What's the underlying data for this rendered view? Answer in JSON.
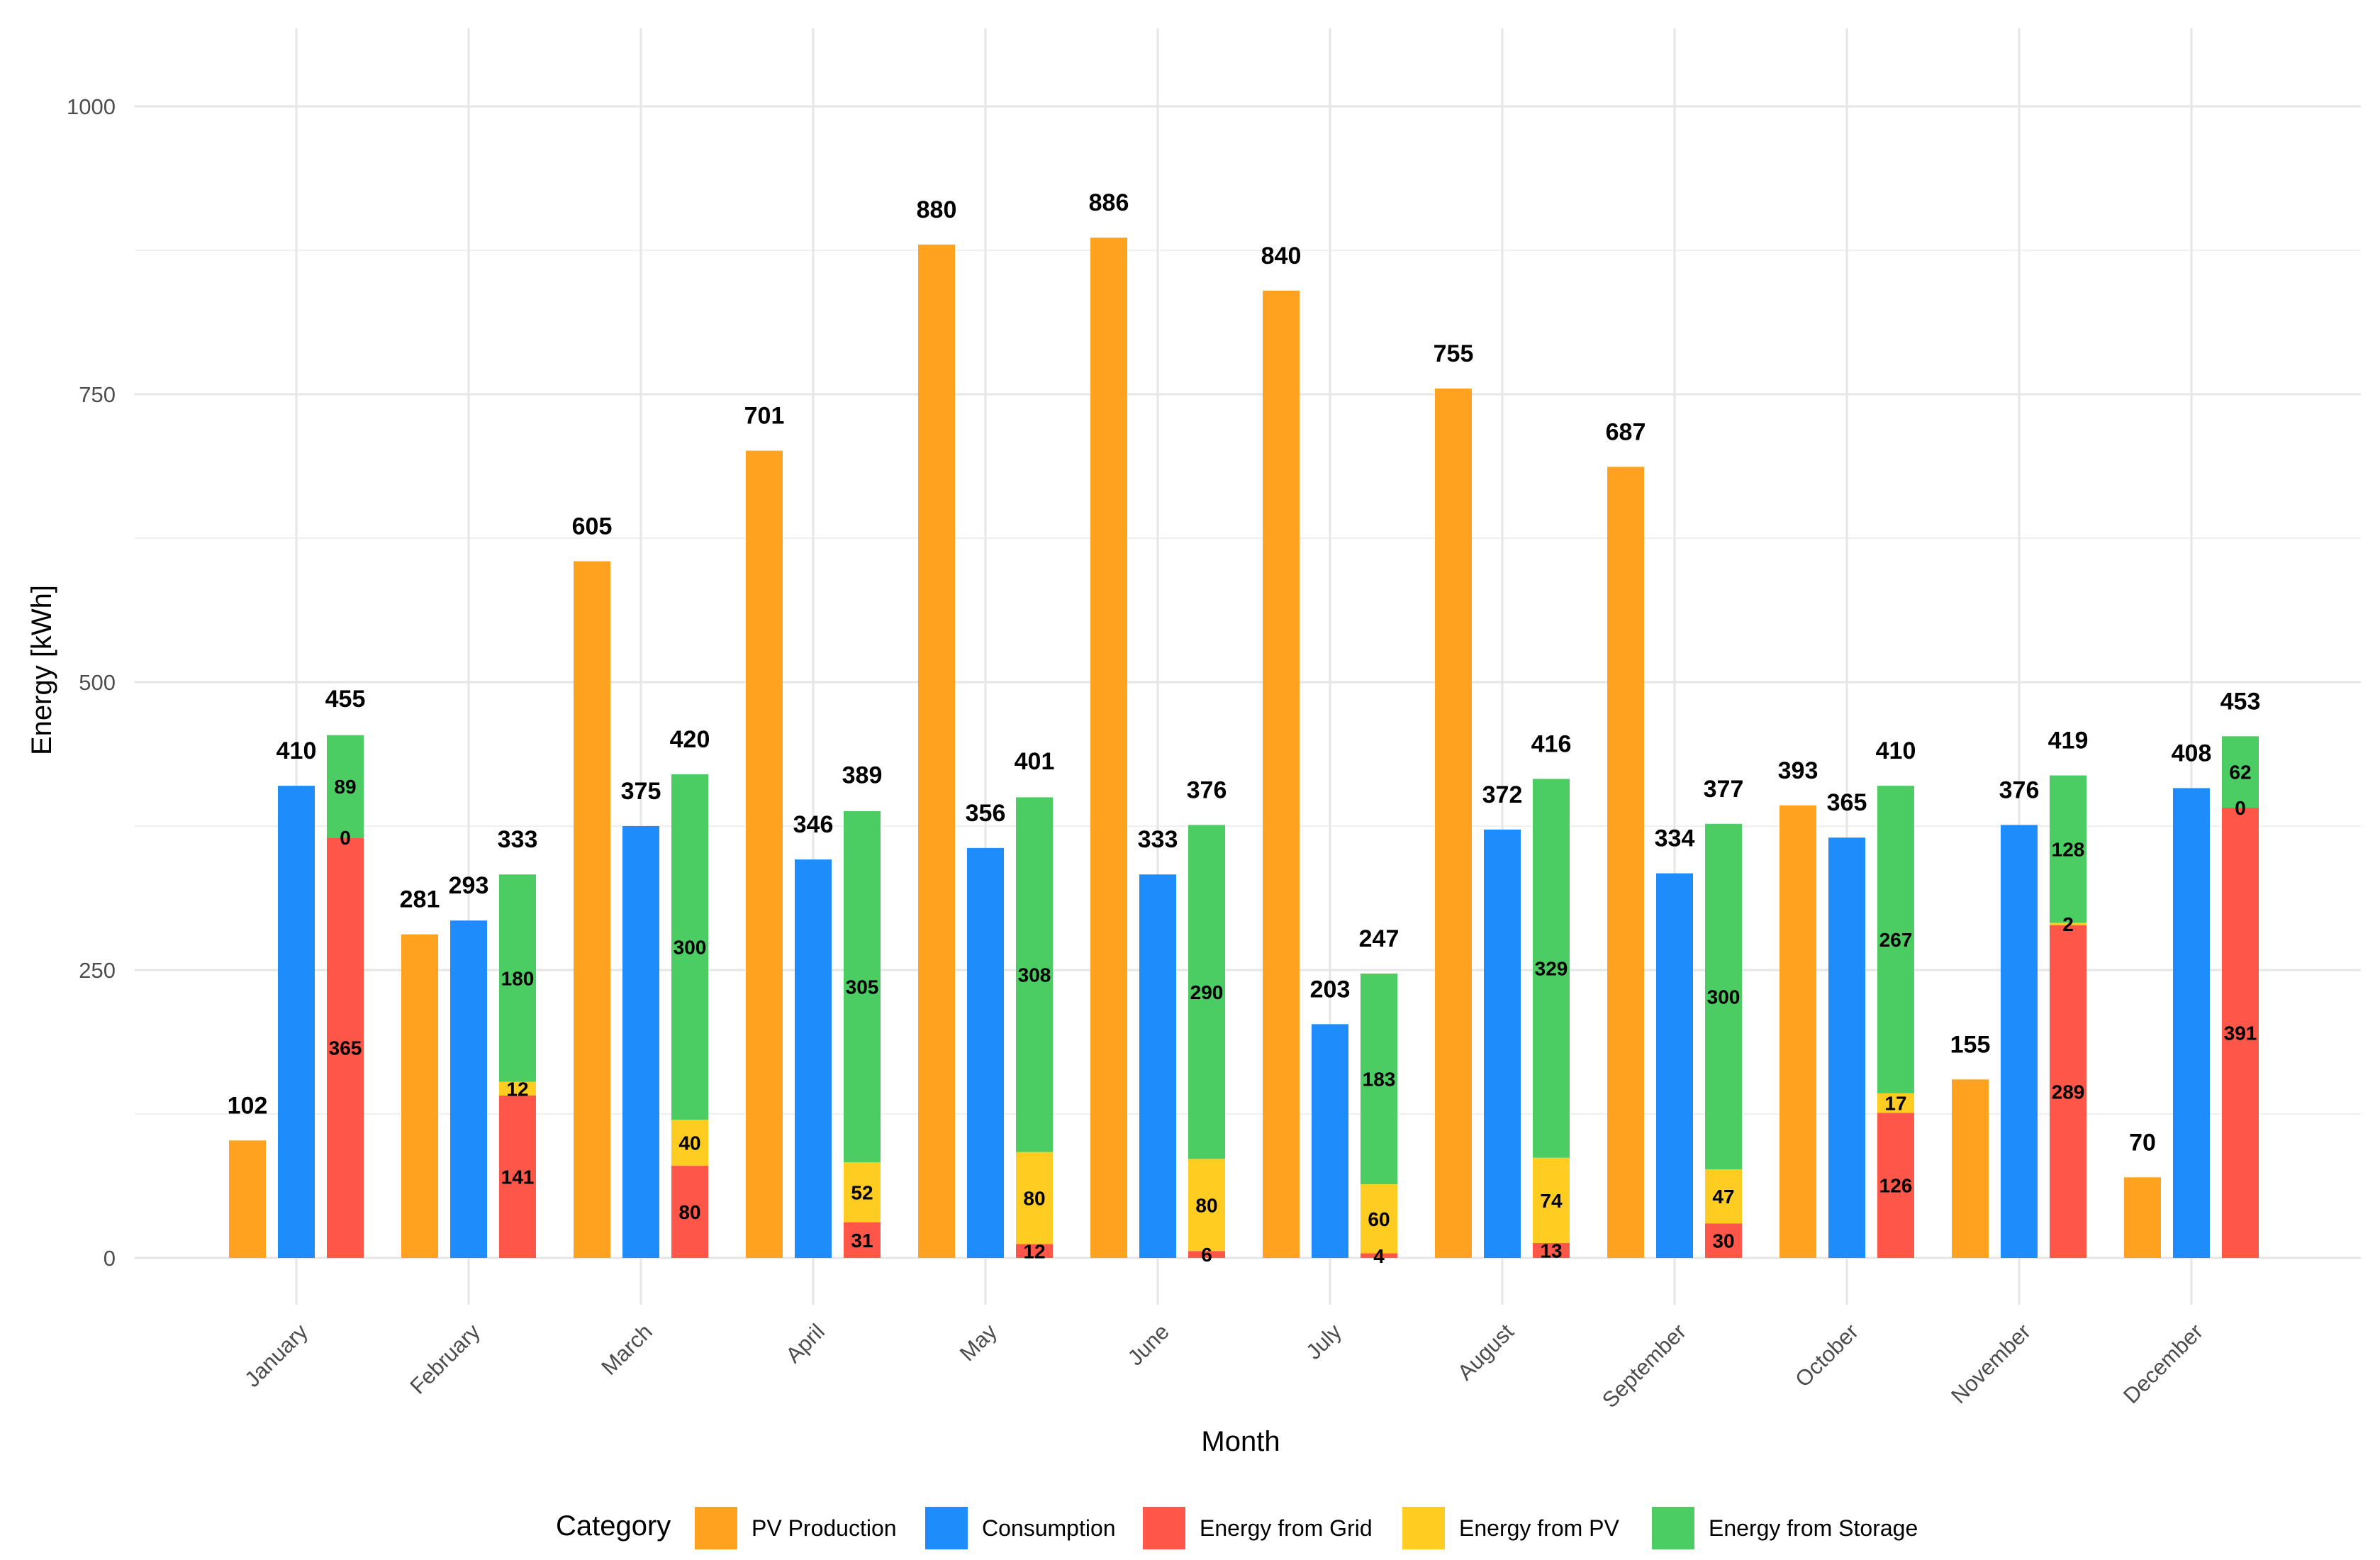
{
  "chart_data": {
    "type": "bar",
    "title": "",
    "xlabel": "Month",
    "ylabel": "Energy [kWh]",
    "ylim": [
      0,
      1000
    ],
    "y_ticks": [
      0,
      250,
      500,
      750,
      1000
    ],
    "grid": true,
    "categories": [
      "January",
      "February",
      "March",
      "April",
      "May",
      "June",
      "July",
      "August",
      "September",
      "October",
      "November",
      "December"
    ],
    "series": [
      {
        "name": "PV Production",
        "group": "pv",
        "color": "#FFA21F",
        "values": [
          102,
          281,
          605,
          701,
          880,
          886,
          840,
          755,
          687,
          393,
          155,
          70
        ]
      },
      {
        "name": "Consumption",
        "group": "consumption",
        "color": "#1E8CFA",
        "values": [
          410,
          293,
          375,
          346,
          356,
          333,
          203,
          372,
          334,
          365,
          376,
          408
        ]
      },
      {
        "name": "Energy from Grid",
        "group": "stack",
        "color": "#FF564A",
        "values": [
          365,
          141,
          80,
          31,
          12,
          6,
          4,
          13,
          30,
          126,
          289,
          391
        ]
      },
      {
        "name": "Energy from PV",
        "group": "stack",
        "color": "#FFCC22",
        "values": [
          0,
          12,
          40,
          52,
          80,
          80,
          60,
          74,
          47,
          17,
          2,
          0
        ]
      },
      {
        "name": "Energy from Storage",
        "group": "stack",
        "color": "#4CCD63",
        "values": [
          89,
          180,
          300,
          305,
          308,
          290,
          183,
          329,
          300,
          267,
          128,
          62
        ]
      }
    ],
    "stack_totals": [
      455,
      333,
      420,
      389,
      401,
      376,
      247,
      416,
      377,
      410,
      419,
      453
    ],
    "legend": {
      "title": "Category",
      "position": "bottom",
      "entries": [
        "PV Production",
        "Consumption",
        "Energy from Grid",
        "Energy from PV",
        "Energy from Storage"
      ]
    }
  }
}
